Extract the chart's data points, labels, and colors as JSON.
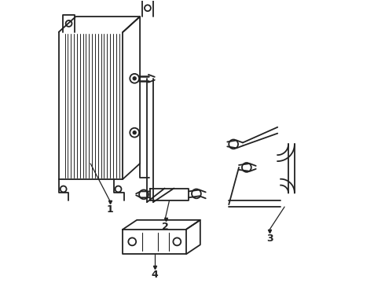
{
  "bg_color": "#ffffff",
  "line_color": "#222222",
  "lw": 1.3,
  "fig_w": 4.9,
  "fig_h": 3.6,
  "dpi": 100
}
